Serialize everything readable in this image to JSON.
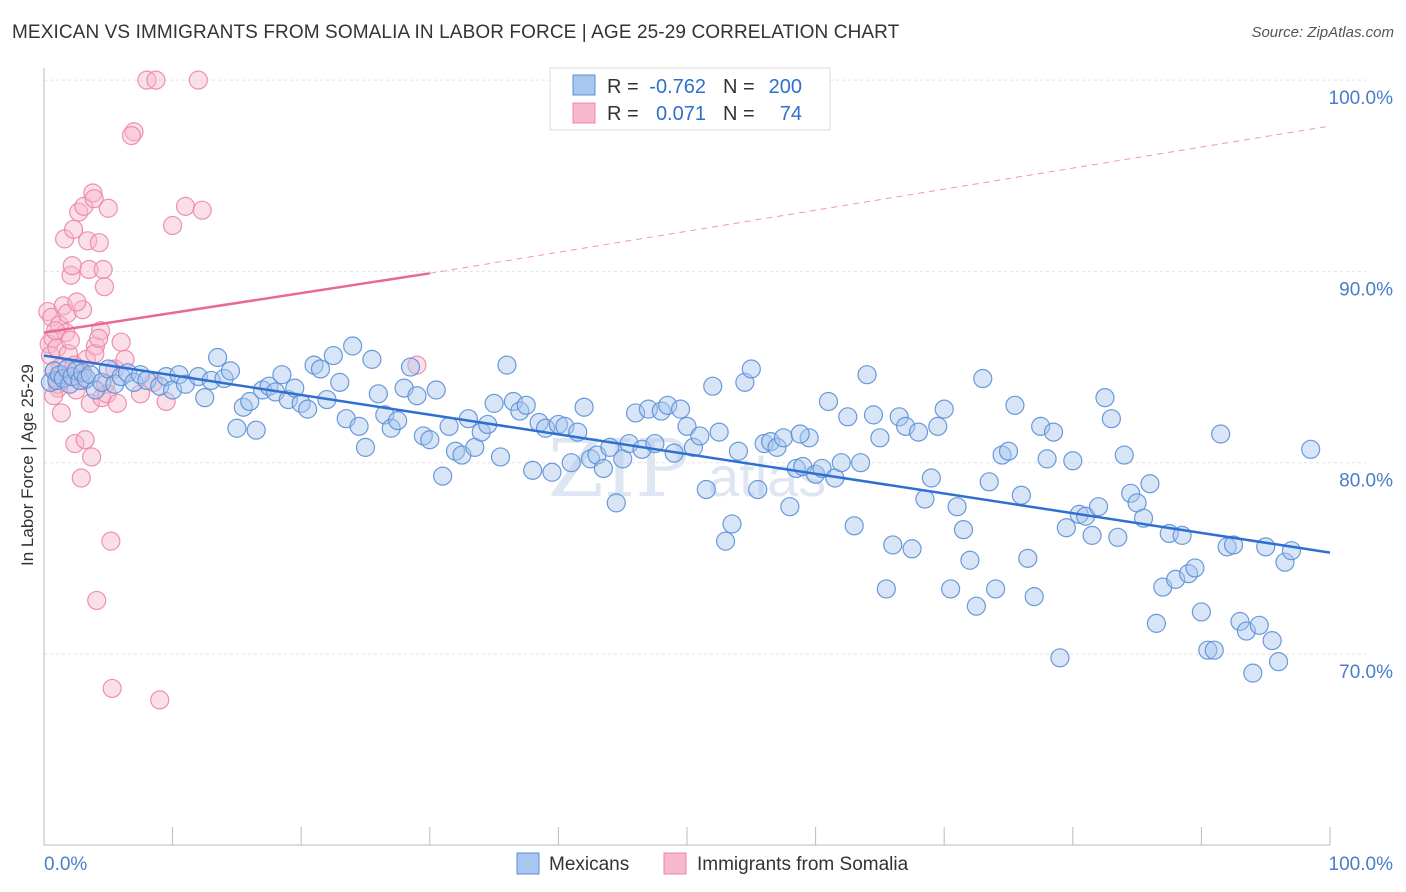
{
  "header": {
    "title": "MEXICAN VS IMMIGRANTS FROM SOMALIA IN LABOR FORCE | AGE 25-29 CORRELATION CHART",
    "source": "Source: ZipAtlas.com"
  },
  "watermark": {
    "zip": "ZIP",
    "atlas": "atlas"
  },
  "chart_data": {
    "type": "scatter",
    "title": "MEXICAN VS IMMIGRANTS FROM SOMALIA IN LABOR FORCE | AGE 25-29 CORRELATION CHART",
    "xlabel": "",
    "ylabel": "In Labor Force | Age 25-29",
    "xlim": [
      0,
      100
    ],
    "ylim": [
      60,
      101
    ],
    "x_tick_labels": {
      "min": "0.0%",
      "max": "100.0%"
    },
    "y_ticks": [
      {
        "value": 70,
        "label": "70.0%"
      },
      {
        "value": 80,
        "label": "80.0%"
      },
      {
        "value": 90,
        "label": "90.0%"
      },
      {
        "value": 100,
        "label": "100.0%"
      }
    ],
    "grid": true,
    "legend_position": "top-center",
    "colors": {
      "mexicans_fill": "#a9c6ee",
      "mexicans_stroke": "#5b8fd6",
      "mexicans_line": "#2f6fd0",
      "somalia_fill": "#f7b8cb",
      "somalia_stroke": "#ec86a6",
      "somalia_line": "#e86a93",
      "tick_text": "#4a7cc8"
    },
    "stats": [
      {
        "r_label": "R =",
        "r_value": "-0.762",
        "n_label": "N =",
        "n_value": "200"
      },
      {
        "r_label": "R =",
        "r_value": "0.071",
        "n_label": "N =",
        "n_value": "74"
      }
    ],
    "series": [
      {
        "name": "Mexicans",
        "trend": {
          "x0": 0,
          "y0": 85.6,
          "x1": 100,
          "y1": 75.3
        },
        "points": [
          [
            0.5,
            84.2
          ],
          [
            0.8,
            84.8
          ],
          [
            1,
            84.3
          ],
          [
            1.2,
            84.6
          ],
          [
            1.5,
            84.4
          ],
          [
            1.8,
            84.9
          ],
          [
            2,
            84.1
          ],
          [
            2.2,
            84.5
          ],
          [
            2.5,
            84.8
          ],
          [
            2.8,
            84.3
          ],
          [
            3,
            84.7
          ],
          [
            3.3,
            84.4
          ],
          [
            3.6,
            84.6
          ],
          [
            4,
            83.8
          ],
          [
            4.5,
            84.2
          ],
          [
            5,
            84.9
          ],
          [
            5.5,
            84.1
          ],
          [
            6,
            84.5
          ],
          [
            6.5,
            84.7
          ],
          [
            7,
            84.2
          ],
          [
            7.5,
            84.6
          ],
          [
            8,
            84.3
          ],
          [
            9,
            84.0
          ],
          [
            9.5,
            84.5
          ],
          [
            10,
            83.8
          ],
          [
            10.5,
            84.6
          ],
          [
            11,
            84.1
          ],
          [
            12,
            84.5
          ],
          [
            12.5,
            83.4
          ],
          [
            13,
            84.3
          ],
          [
            13.5,
            85.5
          ],
          [
            14,
            84.4
          ],
          [
            14.5,
            84.8
          ],
          [
            15,
            81.8
          ],
          [
            15.5,
            82.9
          ],
          [
            16,
            83.2
          ],
          [
            16.5,
            81.7
          ],
          [
            17,
            83.8
          ],
          [
            17.5,
            84.0
          ],
          [
            18,
            83.7
          ],
          [
            18.5,
            84.6
          ],
          [
            19,
            83.3
          ],
          [
            19.5,
            83.9
          ],
          [
            20,
            83.1
          ],
          [
            20.5,
            82.8
          ],
          [
            21,
            85.1
          ],
          [
            21.5,
            84.9
          ],
          [
            22,
            83.3
          ],
          [
            22.5,
            85.6
          ],
          [
            23,
            84.2
          ],
          [
            23.5,
            82.3
          ],
          [
            24,
            86.1
          ],
          [
            24.5,
            81.9
          ],
          [
            25,
            80.8
          ],
          [
            25.5,
            85.4
          ],
          [
            26,
            83.6
          ],
          [
            26.5,
            82.5
          ],
          [
            27,
            81.8
          ],
          [
            27.5,
            82.2
          ],
          [
            28,
            83.9
          ],
          [
            28.5,
            85.0
          ],
          [
            29,
            83.5
          ],
          [
            29.5,
            81.4
          ],
          [
            30,
            81.2
          ],
          [
            30.5,
            83.8
          ],
          [
            31,
            79.3
          ],
          [
            31.5,
            81.9
          ],
          [
            32,
            80.6
          ],
          [
            32.5,
            80.4
          ],
          [
            33,
            82.3
          ],
          [
            33.5,
            80.8
          ],
          [
            34,
            81.6
          ],
          [
            34.5,
            82.0
          ],
          [
            35,
            83.1
          ],
          [
            35.5,
            80.3
          ],
          [
            36,
            85.1
          ],
          [
            36.5,
            83.2
          ],
          [
            37,
            82.7
          ],
          [
            37.5,
            83.0
          ],
          [
            38,
            79.6
          ],
          [
            38.5,
            82.1
          ],
          [
            39,
            81.8
          ],
          [
            39.5,
            79.5
          ],
          [
            40,
            82.0
          ],
          [
            40.5,
            81.9
          ],
          [
            41,
            80.0
          ],
          [
            41.5,
            81.6
          ],
          [
            42,
            82.9
          ],
          [
            42.5,
            80.2
          ],
          [
            43,
            80.4
          ],
          [
            43.5,
            79.7
          ],
          [
            44,
            80.8
          ],
          [
            44.5,
            77.9
          ],
          [
            45,
            80.2
          ],
          [
            45.5,
            81.0
          ],
          [
            46,
            82.6
          ],
          [
            46.5,
            80.7
          ],
          [
            47,
            82.8
          ],
          [
            47.5,
            81.0
          ],
          [
            48,
            82.7
          ],
          [
            48.5,
            83.0
          ],
          [
            49,
            80.5
          ],
          [
            49.5,
            82.8
          ],
          [
            50,
            81.9
          ],
          [
            50.5,
            80.8
          ],
          [
            51,
            81.4
          ],
          [
            51.5,
            78.6
          ],
          [
            52,
            84.0
          ],
          [
            52.5,
            81.6
          ],
          [
            53,
            75.9
          ],
          [
            53.5,
            76.8
          ],
          [
            54,
            80.6
          ],
          [
            54.5,
            84.2
          ],
          [
            55,
            84.9
          ],
          [
            55.5,
            78.6
          ],
          [
            56,
            81.0
          ],
          [
            56.5,
            81.1
          ],
          [
            57,
            80.8
          ],
          [
            57.5,
            81.3
          ],
          [
            58,
            77.7
          ],
          [
            58.5,
            79.7
          ],
          [
            59,
            79.8
          ],
          [
            59.5,
            81.3
          ],
          [
            60,
            79.4
          ],
          [
            60.5,
            79.7
          ],
          [
            61,
            83.2
          ],
          [
            61.5,
            79.2
          ],
          [
            62,
            80.0
          ],
          [
            62.5,
            82.4
          ],
          [
            63,
            76.7
          ],
          [
            63.5,
            80.0
          ],
          [
            64,
            84.6
          ],
          [
            64.5,
            82.5
          ],
          [
            65,
            81.3
          ],
          [
            65.5,
            73.4
          ],
          [
            66,
            75.7
          ],
          [
            66.5,
            82.4
          ],
          [
            67,
            81.9
          ],
          [
            67.5,
            75.5
          ],
          [
            68,
            81.6
          ],
          [
            68.5,
            78.1
          ],
          [
            69,
            79.2
          ],
          [
            69.5,
            81.9
          ],
          [
            70,
            82.8
          ],
          [
            70.5,
            73.4
          ],
          [
            71,
            77.7
          ],
          [
            71.5,
            76.5
          ],
          [
            72,
            74.9
          ],
          [
            72.5,
            72.5
          ],
          [
            73,
            84.4
          ],
          [
            73.5,
            79.0
          ],
          [
            74,
            73.4
          ],
          [
            74.5,
            80.4
          ],
          [
            75,
            80.6
          ],
          [
            75.5,
            83.0
          ],
          [
            76,
            78.3
          ],
          [
            76.5,
            75.0
          ],
          [
            77,
            73.0
          ],
          [
            77.5,
            81.9
          ],
          [
            78,
            80.2
          ],
          [
            78.5,
            81.6
          ],
          [
            79,
            69.8
          ],
          [
            79.5,
            76.6
          ],
          [
            80,
            80.1
          ],
          [
            80.5,
            77.3
          ],
          [
            81,
            77.2
          ],
          [
            81.5,
            76.2
          ],
          [
            82,
            77.7
          ],
          [
            82.5,
            83.4
          ],
          [
            83,
            82.3
          ],
          [
            83.5,
            76.1
          ],
          [
            84,
            80.4
          ],
          [
            84.5,
            78.4
          ],
          [
            85,
            77.9
          ],
          [
            85.5,
            77.1
          ],
          [
            86,
            78.9
          ],
          [
            86.5,
            71.6
          ],
          [
            87,
            73.5
          ],
          [
            87.5,
            76.3
          ],
          [
            88,
            73.9
          ],
          [
            88.5,
            76.2
          ],
          [
            89,
            74.2
          ],
          [
            89.5,
            74.5
          ],
          [
            90,
            72.2
          ],
          [
            90.5,
            70.2
          ],
          [
            91,
            70.2
          ],
          [
            91.5,
            81.5
          ],
          [
            92,
            75.6
          ],
          [
            92.5,
            75.7
          ],
          [
            93,
            71.7
          ],
          [
            93.5,
            71.2
          ],
          [
            94,
            69.0
          ],
          [
            94.5,
            71.5
          ],
          [
            95,
            75.6
          ],
          [
            95.5,
            70.7
          ],
          [
            96,
            69.6
          ],
          [
            96.5,
            74.8
          ],
          [
            97,
            75.4
          ],
          [
            98.5,
            80.7
          ],
          [
            58.8,
            81.5
          ]
        ]
      },
      {
        "name": "Immigrants from Somalia",
        "trend": {
          "x0": 0,
          "y0": 86.8,
          "x1": 30,
          "y1": 89.9,
          "dashed_x1": 100,
          "dashed_y1": 97.6
        },
        "points": [
          [
            0.3,
            87.9
          ],
          [
            0.4,
            86.2
          ],
          [
            0.5,
            85.6
          ],
          [
            0.6,
            87.6
          ],
          [
            0.7,
            86.5
          ],
          [
            0.8,
            84.8
          ],
          [
            1,
            86.0
          ],
          [
            1.1,
            83.9
          ],
          [
            1.2,
            87.2
          ],
          [
            1.3,
            85.0
          ],
          [
            1.4,
            84.6
          ],
          [
            1.5,
            88.2
          ],
          [
            1.6,
            91.7
          ],
          [
            1.7,
            86.8
          ],
          [
            1.8,
            87.8
          ],
          [
            1.9,
            85.7
          ],
          [
            2,
            84.5
          ],
          [
            2.1,
            89.8
          ],
          [
            2.2,
            90.3
          ],
          [
            2.3,
            92.2
          ],
          [
            2.4,
            81.0
          ],
          [
            2.5,
            83.8
          ],
          [
            2.7,
            93.1
          ],
          [
            2.8,
            84.9
          ],
          [
            2.9,
            79.2
          ],
          [
            3,
            88.0
          ],
          [
            3.1,
            93.4
          ],
          [
            3.2,
            81.2
          ],
          [
            3.3,
            85.4
          ],
          [
            3.4,
            91.6
          ],
          [
            3.5,
            90.1
          ],
          [
            3.6,
            83.1
          ],
          [
            3.7,
            80.3
          ],
          [
            3.8,
            94.1
          ],
          [
            3.9,
            93.8
          ],
          [
            4,
            86.1
          ],
          [
            4.1,
            72.8
          ],
          [
            4.3,
            91.5
          ],
          [
            4.4,
            86.9
          ],
          [
            4.5,
            83.4
          ],
          [
            4.6,
            90.1
          ],
          [
            4.7,
            89.2
          ],
          [
            4.8,
            84.1
          ],
          [
            4.9,
            83.6
          ],
          [
            5,
            93.3
          ],
          [
            5.2,
            75.9
          ],
          [
            5.3,
            68.2
          ],
          [
            5.5,
            84.9
          ],
          [
            5.7,
            83.1
          ],
          [
            6,
            86.3
          ],
          [
            6.3,
            85.4
          ],
          [
            7,
            97.3
          ],
          [
            7.5,
            83.6
          ],
          [
            8,
            100.0
          ],
          [
            8.5,
            84.2
          ],
          [
            8.7,
            100.0
          ],
          [
            9,
            67.6
          ],
          [
            9.5,
            83.2
          ],
          [
            10,
            92.4
          ],
          [
            11,
            93.4
          ],
          [
            12,
            100.0
          ],
          [
            12.3,
            93.2
          ],
          [
            0.9,
            86.9
          ],
          [
            1.05,
            84.1
          ],
          [
            2.35,
            85.1
          ],
          [
            2.55,
            88.4
          ],
          [
            3.15,
            84.3
          ],
          [
            3.95,
            85.7
          ],
          [
            4.25,
            86.5
          ],
          [
            6.8,
            97.1
          ],
          [
            29,
            85.1
          ],
          [
            0.75,
            83.5
          ],
          [
            1.35,
            82.6
          ],
          [
            2.05,
            86.4
          ]
        ]
      }
    ]
  },
  "legend": {
    "mexicans": "Mexicans",
    "somalia": "Immigrants from Somalia"
  }
}
